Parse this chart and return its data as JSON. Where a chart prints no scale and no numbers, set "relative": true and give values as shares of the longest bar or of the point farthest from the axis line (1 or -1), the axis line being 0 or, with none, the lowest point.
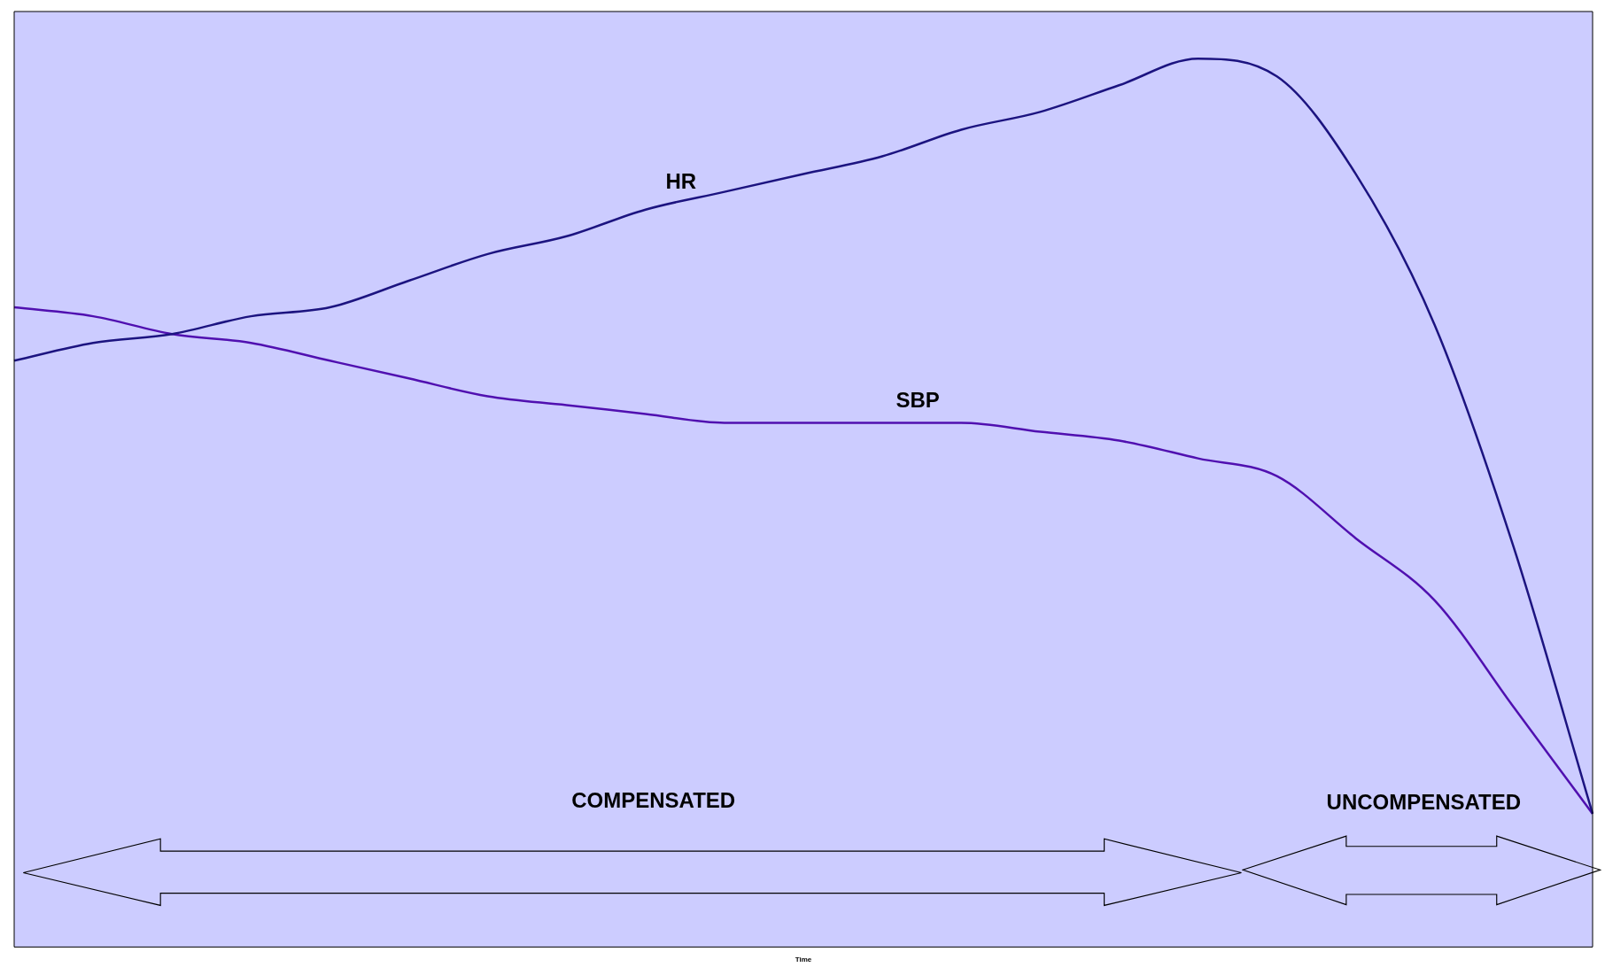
{
  "chart_data": {
    "type": "line",
    "relative": true,
    "xlabel": "Time",
    "categories": [
      null,
      null,
      null,
      null,
      null,
      null,
      null,
      null,
      null,
      null,
      null,
      null,
      null,
      null,
      null,
      null,
      null,
      null,
      null,
      null,
      null
    ],
    "series": [
      {
        "name": "HR",
        "color": "#1c1480",
        "values": [
          0.66,
          0.68,
          0.69,
          0.71,
          0.72,
          0.75,
          0.78,
          0.8,
          0.83,
          0.85,
          0.87,
          0.89,
          0.92,
          0.94,
          0.97,
          1.0,
          0.98,
          0.87,
          0.7,
          0.45,
          0.15
        ]
      },
      {
        "name": "SBP",
        "color": "#5010b0",
        "values": [
          0.72,
          0.71,
          0.69,
          0.68,
          0.66,
          0.64,
          0.62,
          0.61,
          0.6,
          0.59,
          0.59,
          0.59,
          0.59,
          0.58,
          0.57,
          0.55,
          0.53,
          0.46,
          0.39,
          0.27,
          0.15
        ]
      }
    ],
    "annotations": [
      "COMPENSATED",
      "UNCOMPENSATED"
    ],
    "grid": false,
    "legend": false,
    "marker": "none",
    "line_style": "solid"
  }
}
